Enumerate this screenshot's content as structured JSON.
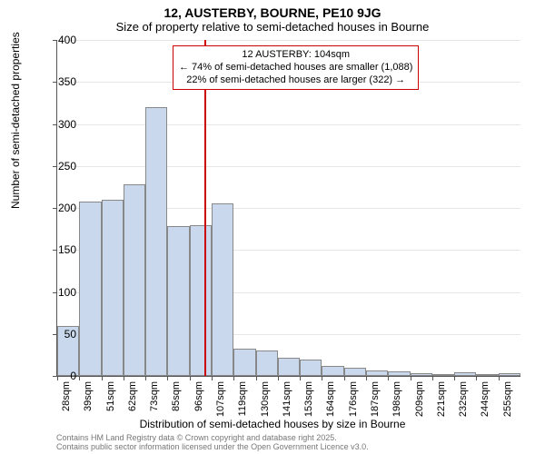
{
  "title": "12, AUSTERBY, BOURNE, PE10 9JG",
  "subtitle": "Size of property relative to semi-detached houses in Bourne",
  "ylabel": "Number of semi-detached properties",
  "xlabel": "Distribution of semi-detached houses by size in Bourne",
  "footer_line1": "Contains HM Land Registry data © Crown copyright and database right 2025.",
  "footer_line2": "Contains public sector information licensed under the Open Government Licence v3.0.",
  "chart": {
    "type": "histogram",
    "ylim": [
      0,
      400
    ],
    "ytick_step": 50,
    "bar_fill": "#c9d8ed",
    "bar_border": "#888888",
    "vline_color": "#cc0000",
    "vline_x_sqm": 104,
    "x_start": 28,
    "x_step": 11.3636,
    "bar_count": 21,
    "categories": [
      "28sqm",
      "39sqm",
      "51sqm",
      "62sqm",
      "73sqm",
      "85sqm",
      "96sqm",
      "107sqm",
      "119sqm",
      "130sqm",
      "141sqm",
      "153sqm",
      "164sqm",
      "176sqm",
      "187sqm",
      "198sqm",
      "209sqm",
      "221sqm",
      "232sqm",
      "244sqm",
      "255sqm"
    ],
    "values": [
      60,
      208,
      210,
      228,
      320,
      178,
      180,
      205,
      32,
      30,
      22,
      20,
      12,
      10,
      6,
      5,
      3,
      2,
      4,
      0,
      3
    ],
    "annotation": {
      "line1": "12 AUSTERBY: 104sqm",
      "line2": "← 74% of semi-detached houses are smaller (1,088)",
      "line3": "22% of semi-detached houses are larger (322) →"
    }
  },
  "colors": {
    "text": "#000000",
    "axis": "#555555",
    "footer": "#777777"
  },
  "fonts": {
    "title_size": 14,
    "subtitle_size": 13,
    "label_size": 12,
    "tick_size": 11,
    "annotation_size": 11,
    "footer_size": 9
  }
}
